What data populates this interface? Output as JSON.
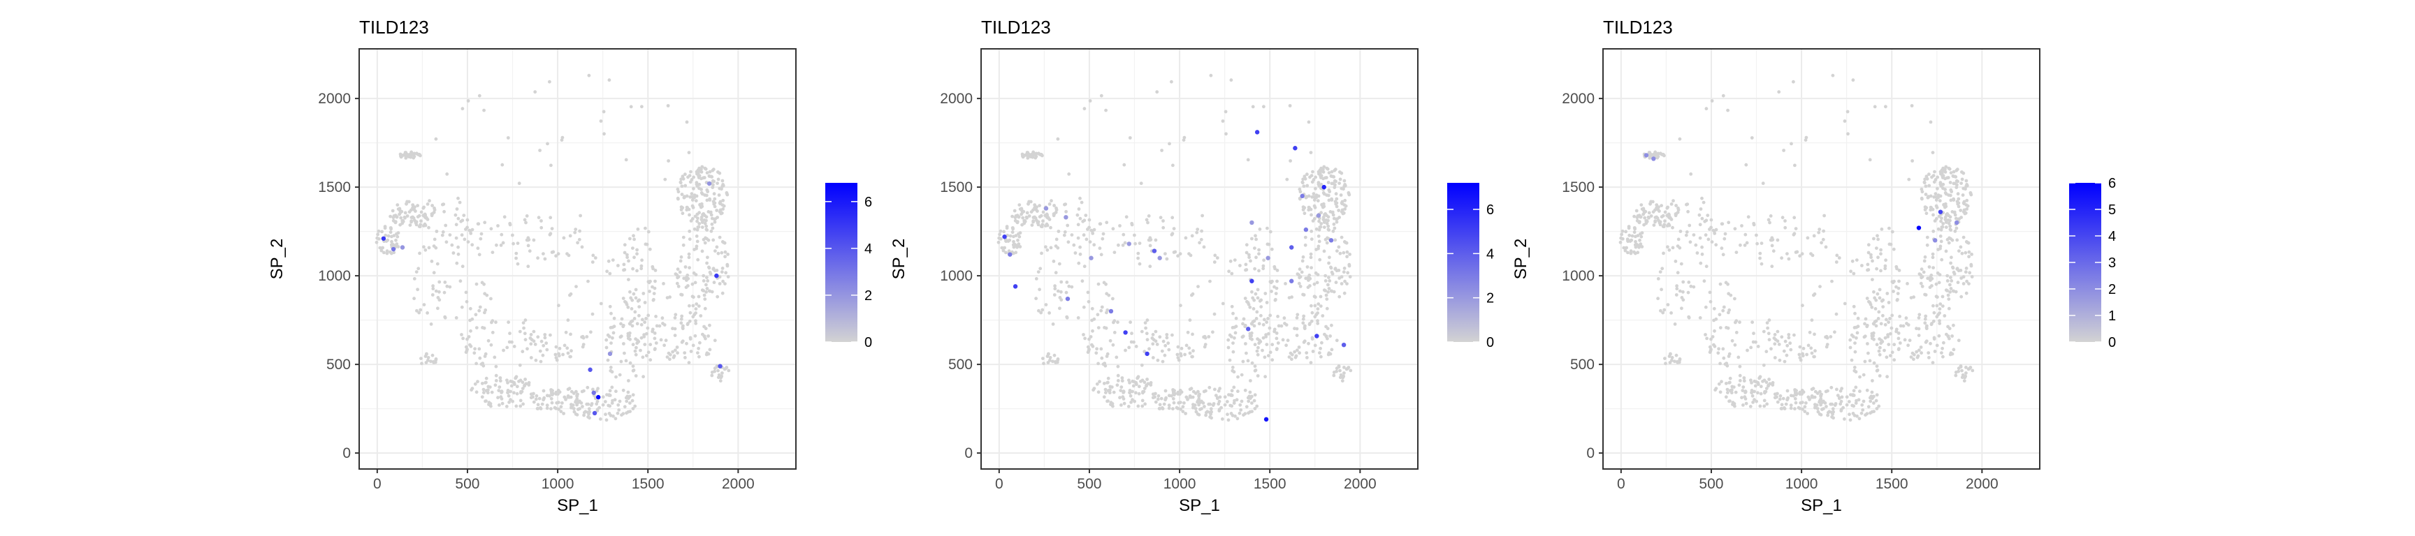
{
  "chart_data": [
    {
      "type": "scatter",
      "title": "TILD123",
      "xlabel": "SP_1",
      "ylabel": "SP_2",
      "xlim": [
        -100,
        2320
      ],
      "ylim": [
        -90,
        2280
      ],
      "x_ticks": [
        0,
        500,
        1000,
        1500,
        2000
      ],
      "y_ticks": [
        0,
        500,
        1000,
        1500,
        2000
      ],
      "grid": true,
      "legend": {
        "placement": "right",
        "min": 0,
        "max": 6.8,
        "ticks": [
          0,
          2,
          4,
          6
        ],
        "low_color": "#d3d3d3",
        "high_color": "#0000ff"
      },
      "highlights": [
        {
          "x": 35,
          "y": 1210,
          "v": 5
        },
        {
          "x": 90,
          "y": 1150,
          "v": 3
        },
        {
          "x": 140,
          "y": 1160,
          "v": 2
        },
        {
          "x": 1180,
          "y": 470,
          "v": 4
        },
        {
          "x": 1225,
          "y": 315,
          "v": 6.5
        },
        {
          "x": 1200,
          "y": 340,
          "v": 3
        },
        {
          "x": 1205,
          "y": 225,
          "v": 4
        },
        {
          "x": 1900,
          "y": 490,
          "v": 4
        },
        {
          "x": 1880,
          "y": 1000,
          "v": 5
        },
        {
          "x": 1840,
          "y": 1520,
          "v": 2
        },
        {
          "x": 1290,
          "y": 560,
          "v": 2
        }
      ]
    },
    {
      "type": "scatter",
      "title": "TILD123",
      "xlabel": "SP_1",
      "ylabel": "SP_2",
      "xlim": [
        -100,
        2320
      ],
      "ylim": [
        -90,
        2280
      ],
      "x_ticks": [
        0,
        500,
        1000,
        1500,
        2000
      ],
      "y_ticks": [
        0,
        500,
        1000,
        1500,
        2000
      ],
      "grid": true,
      "legend": {
        "placement": "right",
        "min": 0,
        "max": 7.2,
        "ticks": [
          0,
          2,
          4,
          6
        ],
        "low_color": "#d3d3d3",
        "high_color": "#0000ff"
      },
      "highlights": [
        {
          "x": 1430,
          "y": 1810,
          "v": 5
        },
        {
          "x": 1640,
          "y": 1720,
          "v": 5
        },
        {
          "x": 1800,
          "y": 1500,
          "v": 6
        },
        {
          "x": 1680,
          "y": 1450,
          "v": 3
        },
        {
          "x": 1620,
          "y": 1160,
          "v": 4
        },
        {
          "x": 1700,
          "y": 1260,
          "v": 3
        },
        {
          "x": 1770,
          "y": 1340,
          "v": 2
        },
        {
          "x": 1840,
          "y": 1200,
          "v": 3
        },
        {
          "x": 1400,
          "y": 970,
          "v": 5
        },
        {
          "x": 1490,
          "y": 1100,
          "v": 2
        },
        {
          "x": 1620,
          "y": 970,
          "v": 3
        },
        {
          "x": 1760,
          "y": 660,
          "v": 5
        },
        {
          "x": 1380,
          "y": 700,
          "v": 4
        },
        {
          "x": 1480,
          "y": 190,
          "v": 6.5
        },
        {
          "x": 1910,
          "y": 610,
          "v": 4
        },
        {
          "x": 1400,
          "y": 1300,
          "v": 2
        },
        {
          "x": 30,
          "y": 1220,
          "v": 5
        },
        {
          "x": 90,
          "y": 940,
          "v": 5
        },
        {
          "x": 60,
          "y": 1120,
          "v": 3
        },
        {
          "x": 370,
          "y": 1330,
          "v": 2
        },
        {
          "x": 260,
          "y": 1380,
          "v": 2
        },
        {
          "x": 380,
          "y": 870,
          "v": 3
        },
        {
          "x": 620,
          "y": 800,
          "v": 3
        },
        {
          "x": 700,
          "y": 680,
          "v": 5
        },
        {
          "x": 820,
          "y": 560,
          "v": 5
        },
        {
          "x": 860,
          "y": 1140,
          "v": 4
        },
        {
          "x": 890,
          "y": 1100,
          "v": 2
        },
        {
          "x": 720,
          "y": 1180,
          "v": 2
        },
        {
          "x": 510,
          "y": 1100,
          "v": 2
        }
      ]
    },
    {
      "type": "scatter",
      "title": "TILD123",
      "xlabel": "SP_1",
      "ylabel": "SP_2",
      "xlim": [
        -100,
        2320
      ],
      "ylim": [
        -90,
        2280
      ],
      "x_ticks": [
        0,
        500,
        1000,
        1500,
        2000
      ],
      "y_ticks": [
        0,
        500,
        1000,
        1500,
        2000
      ],
      "grid": true,
      "legend": {
        "placement": "right",
        "min": 0,
        "max": 6,
        "ticks": [
          0,
          1,
          2,
          3,
          4,
          5,
          6
        ],
        "low_color": "#d3d3d3",
        "high_color": "#0000ff"
      },
      "highlights": [
        {
          "x": 1650,
          "y": 1270,
          "v": 6
        },
        {
          "x": 1770,
          "y": 1360,
          "v": 4
        },
        {
          "x": 1860,
          "y": 1300,
          "v": 2
        },
        {
          "x": 180,
          "y": 1660,
          "v": 2
        },
        {
          "x": 140,
          "y": 1680,
          "v": 2
        },
        {
          "x": 1740,
          "y": 1200,
          "v": 2
        }
      ]
    }
  ]
}
